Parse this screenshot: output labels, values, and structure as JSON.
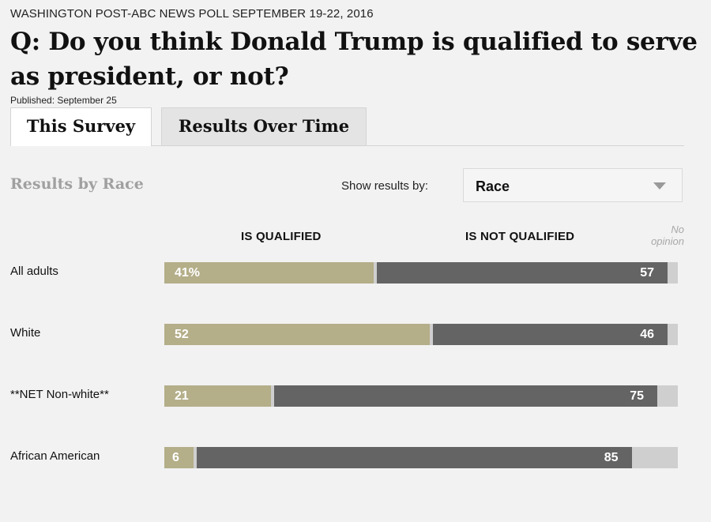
{
  "kicker": "WASHINGTON POST-ABC NEWS POLL SEPTEMBER 19-22, 2016",
  "headline": "Q: Do you think Donald Trump is qualified to serve as president, or not?",
  "published": "Published: September 25",
  "tabs": [
    {
      "label": "This Survey",
      "active": true
    },
    {
      "label": "Results Over Time",
      "active": false
    }
  ],
  "section_title": "Results by Race",
  "filter": {
    "label": "Show results by:",
    "selected": "Race"
  },
  "colors": {
    "qualified": "#b4ae89",
    "not_qualified": "#646464",
    "no_opinion": "#cfcfcf"
  },
  "chart_data": {
    "type": "bar",
    "orientation": "horizontal-stacked",
    "series_headers": {
      "qualified": "IS QUALIFIED",
      "not_qualified": "IS NOT QUALIFIED",
      "no_opinion": "No opinion"
    },
    "categories": [
      "All adults",
      "White",
      "**NET Non-white**",
      "African American"
    ],
    "series": [
      {
        "name": "IS QUALIFIED",
        "values": [
          41,
          52,
          21,
          6
        ],
        "labels": [
          "41%",
          "52",
          "21",
          "6"
        ]
      },
      {
        "name": "IS NOT QUALIFIED",
        "values": [
          57,
          46,
          75,
          85
        ],
        "labels": [
          "57",
          "46",
          "75",
          "85"
        ]
      }
    ],
    "xlim": [
      0,
      100
    ]
  }
}
